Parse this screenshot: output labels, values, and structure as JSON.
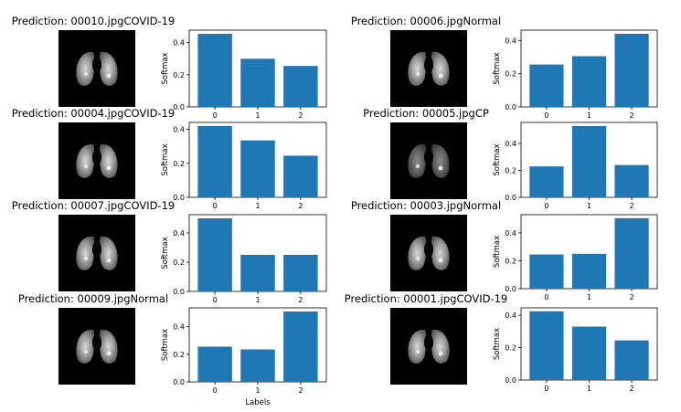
{
  "figure": {
    "xlabel_bottom": "Labels"
  },
  "chart_data": [
    {
      "type": "bar",
      "title": "Prediction: 00010.jpgCOVID-19",
      "categories": [
        "0",
        "1",
        "2"
      ],
      "values": [
        0.455,
        0.3,
        0.255
      ],
      "ylabel": "Softmax",
      "xlabel": "",
      "ylim": [
        0,
        0.478
      ],
      "yticks": [
        "0.0",
        "0.2",
        "0.4"
      ],
      "image": "ct-scan"
    },
    {
      "type": "bar",
      "title": "Prediction: 00006.jpgNormal",
      "categories": [
        "0",
        "1",
        "2"
      ],
      "values": [
        0.255,
        0.305,
        0.44
      ],
      "ylabel": "Softmax",
      "xlabel": "",
      "ylim": [
        0,
        0.462
      ],
      "yticks": [
        "0.0",
        "0.2",
        "0.4"
      ],
      "image": "ct-scan"
    },
    {
      "type": "bar",
      "title": "Prediction: 00004.jpgCOVID-19",
      "categories": [
        "0",
        "1",
        "2"
      ],
      "values": [
        0.42,
        0.335,
        0.245
      ],
      "ylabel": "Softmax",
      "xlabel": "",
      "ylim": [
        0,
        0.441
      ],
      "yticks": [
        "0.0",
        "0.2",
        "0.4"
      ],
      "image": "ct-scan"
    },
    {
      "type": "bar",
      "title": "Prediction: 00005.jpgCP",
      "categories": [
        "0",
        "1",
        "2"
      ],
      "values": [
        0.23,
        0.53,
        0.24
      ],
      "ylabel": "Softmax",
      "xlabel": "",
      "ylim": [
        0,
        0.557
      ],
      "yticks": [
        "0.0",
        "0.2",
        "0.4"
      ],
      "image": "ct-scan"
    },
    {
      "type": "bar",
      "title": "Prediction: 00007.jpgCOVID-19",
      "categories": [
        "0",
        "1",
        "2"
      ],
      "values": [
        0.5,
        0.25,
        0.25
      ],
      "ylabel": "Softmax",
      "xlabel": "",
      "ylim": [
        0,
        0.525
      ],
      "yticks": [
        "0.0",
        "0.2",
        "0.4"
      ],
      "image": "ct-scan"
    },
    {
      "type": "bar",
      "title": "Prediction: 00003.jpgNormal",
      "categories": [
        "0",
        "1",
        "2"
      ],
      "values": [
        0.245,
        0.25,
        0.505
      ],
      "ylabel": "Softmax",
      "xlabel": "",
      "ylim": [
        0,
        0.53
      ],
      "yticks": [
        "0.0",
        "0.2",
        "0.4"
      ],
      "image": "ct-scan"
    },
    {
      "type": "bar",
      "title": "Prediction: 00009.jpgNormal",
      "categories": [
        "0",
        "1",
        "2"
      ],
      "values": [
        0.255,
        0.235,
        0.51
      ],
      "ylabel": "Softmax",
      "xlabel": "Labels",
      "ylim": [
        0,
        0.536
      ],
      "yticks": [
        "0.0",
        "0.2",
        "0.4"
      ],
      "image": "ct-scan"
    },
    {
      "type": "bar",
      "title": "Prediction: 00001.jpgCOVID-19",
      "categories": [
        "0",
        "1",
        "2"
      ],
      "values": [
        0.425,
        0.33,
        0.245
      ],
      "ylabel": "Softmax",
      "xlabel": "",
      "ylim": [
        0,
        0.446
      ],
      "yticks": [
        "0.0",
        "0.2",
        "0.4"
      ],
      "image": "ct-scan"
    }
  ]
}
